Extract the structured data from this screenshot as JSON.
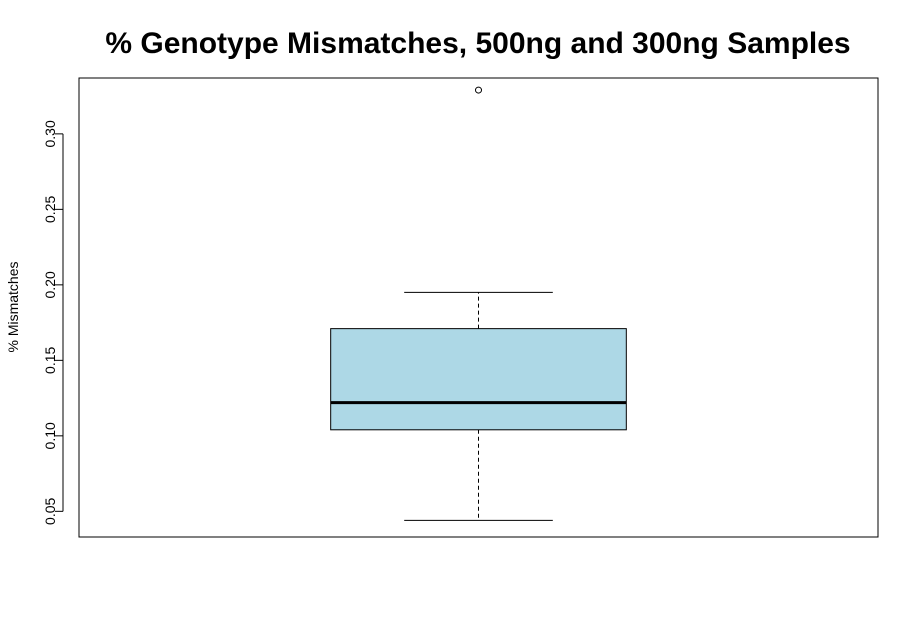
{
  "chart_data": {
    "type": "box",
    "title": "% Genotype Mismatches, 500ng and 300ng Samples",
    "xlabel": "",
    "ylabel": "% Mismatches",
    "ylim": [
      0.033,
      0.337
    ],
    "yticks": [
      0.05,
      0.1,
      0.15,
      0.2,
      0.25,
      0.3
    ],
    "ytick_labels": [
      "0.05",
      "0.10",
      "0.15",
      "0.20",
      "0.25",
      "0.30"
    ],
    "grid": false,
    "legend": "none",
    "boxes": [
      {
        "whisker_low": 0.044,
        "q1": 0.104,
        "median": 0.122,
        "q3": 0.171,
        "whisker_high": 0.195,
        "outliers": [
          0.329
        ]
      }
    ],
    "colors": {
      "box_fill": "#add8e6",
      "stroke": "#000000"
    }
  }
}
